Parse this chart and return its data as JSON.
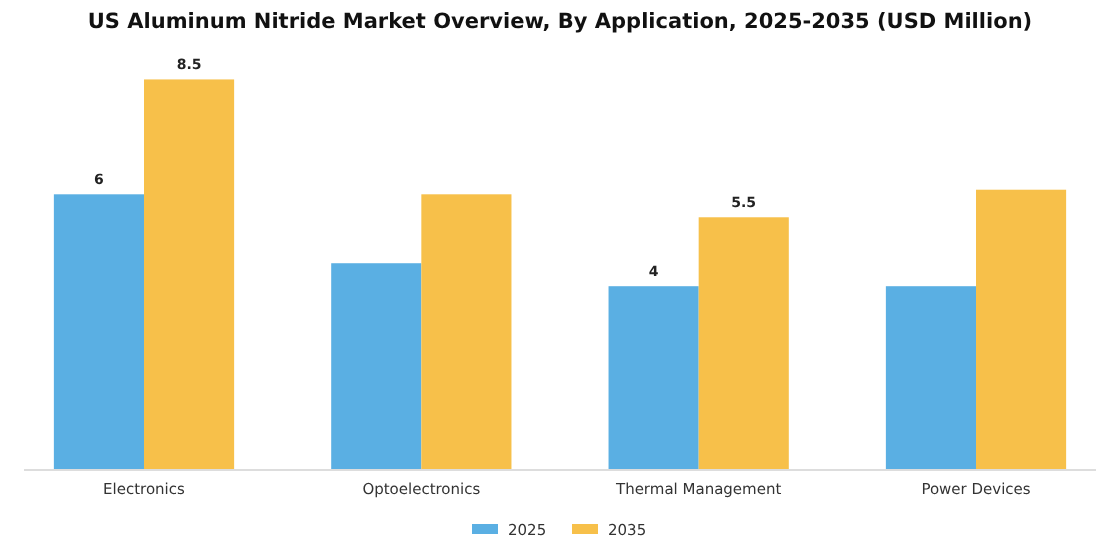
{
  "chart_data": {
    "type": "bar",
    "title": "US Aluminum Nitride Market Overview, By Application, 2025-2035 (USD Million)",
    "categories": [
      "Electronics",
      "Optoelectronics",
      "Thermal Management",
      "Power Devices"
    ],
    "series": [
      {
        "name": "2025",
        "color": "#5aafe3",
        "values": [
          6,
          4.5,
          4,
          4
        ],
        "value_labels": [
          "6",
          null,
          "4",
          null
        ]
      },
      {
        "name": "2035",
        "color": "#f7c04a",
        "values": [
          8.5,
          6,
          5.5,
          6.1
        ],
        "value_labels": [
          "8.5",
          null,
          "5.5",
          null
        ]
      }
    ],
    "legend": "bottom",
    "grid": false
  }
}
